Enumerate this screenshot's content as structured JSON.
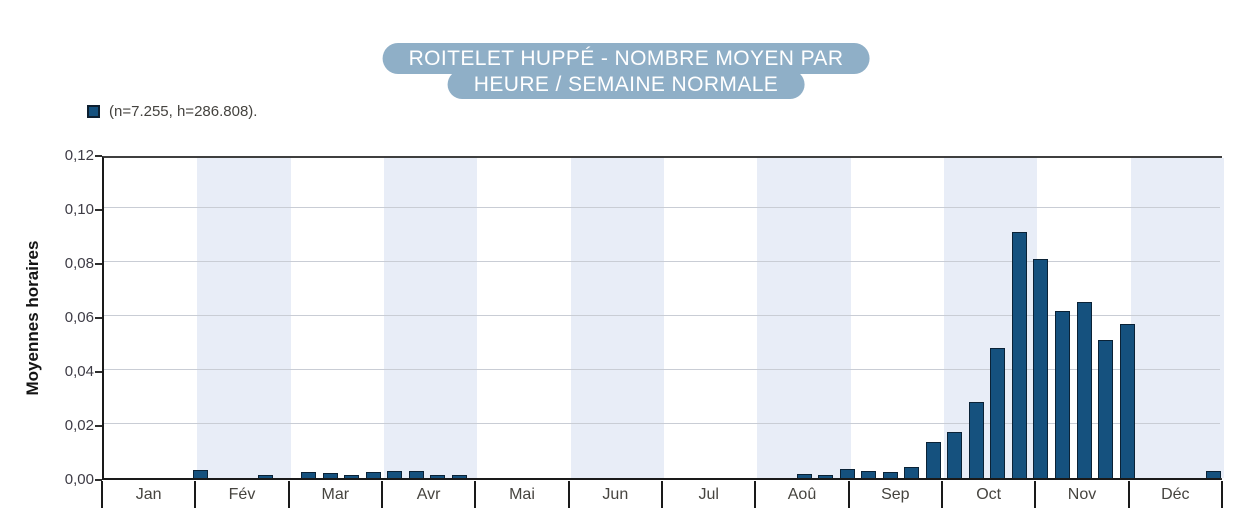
{
  "header": {
    "title_line1": "ROITELET HUPPÉ - NOMBRE MOYEN PAR",
    "title_line2": "HEURE / SEMAINE NORMALE"
  },
  "legend": {
    "label": "(n=7.255, h=286.808)."
  },
  "chart_data": {
    "type": "bar",
    "title": "ROITELET HUPPÉ - NOMBRE MOYEN PAR HEURE / SEMAINE NORMALE",
    "ylabel": "Moyennes horaires",
    "legend_label": "(n=7.255, h=286.808).",
    "x_months": [
      "Jan",
      "Fév",
      "Mar",
      "Avr",
      "Mai",
      "Jun",
      "Jul",
      "Aoû",
      "Sep",
      "Oct",
      "Nov",
      "Déc"
    ],
    "striped_months": [
      "Fév",
      "Avr",
      "Jun",
      "Aoû",
      "Oct",
      "Déc"
    ],
    "weeks_per_year": 52,
    "weekly_values": [
      0,
      0,
      0,
      0,
      0.003,
      0,
      0,
      0.001,
      0,
      0.0022,
      0.002,
      0.001,
      0.0022,
      0.0026,
      0.0026,
      0.001,
      0.0012,
      0,
      0,
      0,
      0,
      0,
      0,
      0,
      0,
      0,
      0,
      0,
      0,
      0,
      0,
      0,
      0.0014,
      0.0011,
      0.0034,
      0.0025,
      0.0021,
      0.004,
      0.0135,
      0.017,
      0.028,
      0.048,
      0.091,
      0.081,
      0.062,
      0.065,
      0.051,
      0.057,
      0,
      0,
      0,
      0.0027
    ],
    "ylim": [
      0,
      0.12
    ],
    "ytick_values": [
      0,
      0.02,
      0.04,
      0.06,
      0.08,
      0.1,
      0.12
    ],
    "ytick_labels": [
      "0,00",
      "0,02",
      "0,04",
      "0,06",
      "0,08",
      "0,10",
      "0,12"
    ],
    "grid": "horizontal",
    "legend_position": "top-left",
    "colors": {
      "bar_fill": "#15517e",
      "bar_border": "#0a2236",
      "month_stripe": "#e8edf7",
      "gridline": "#c9cdd5",
      "title_badge": "#8fafc7",
      "title_text": "#ffffff"
    }
  }
}
